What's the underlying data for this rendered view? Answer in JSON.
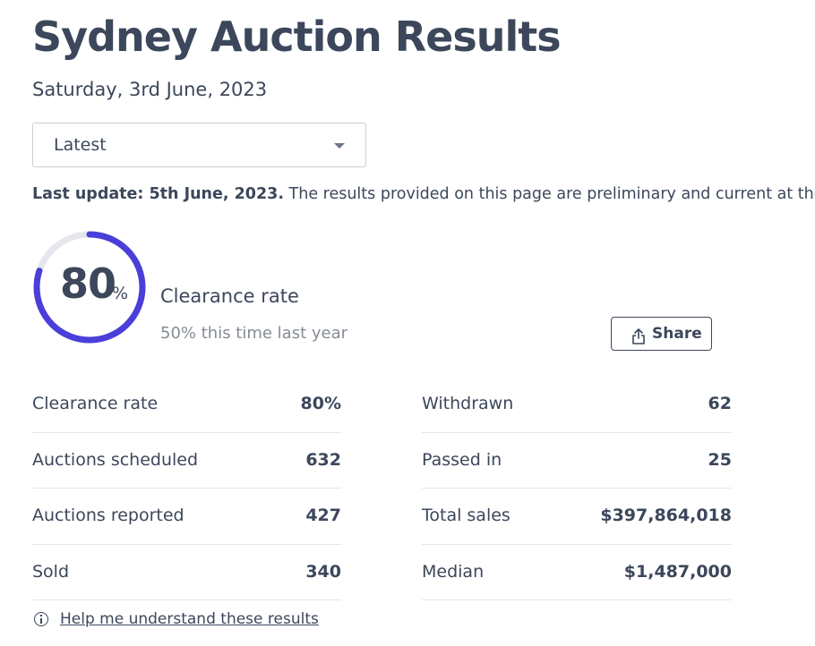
{
  "header": {
    "title": "Sydney Auction Results",
    "date": "Saturday, 3rd June, 2023"
  },
  "period_select": {
    "value": "Latest"
  },
  "update_notice": {
    "label": "Last update: 5th June, 2023.",
    "text": " The results provided on this page are preliminary and current at the t"
  },
  "summary": {
    "clearance_value": "80",
    "clearance_unit": "%",
    "clearance_fraction": 0.8,
    "label": "Clearance rate",
    "comparison": "50% this time last year",
    "accent_color": "#4a3fd8",
    "track_color": "#e5e7ec"
  },
  "share_button": {
    "label": "Share",
    "icon": "share-icon"
  },
  "stats_left": [
    {
      "label": "Clearance rate",
      "value": "80%"
    },
    {
      "label": "Auctions scheduled",
      "value": "632"
    },
    {
      "label": "Auctions reported",
      "value": "427"
    },
    {
      "label": "Sold",
      "value": "340"
    }
  ],
  "stats_right": [
    {
      "label": "Withdrawn",
      "value": "62"
    },
    {
      "label": "Passed in",
      "value": "25"
    },
    {
      "label": "Total sales",
      "value": "$397,864,018"
    },
    {
      "label": "Median",
      "value": "$1,487,000"
    }
  ],
  "help_link": {
    "label": "Help me understand these results",
    "icon": "info-icon"
  }
}
